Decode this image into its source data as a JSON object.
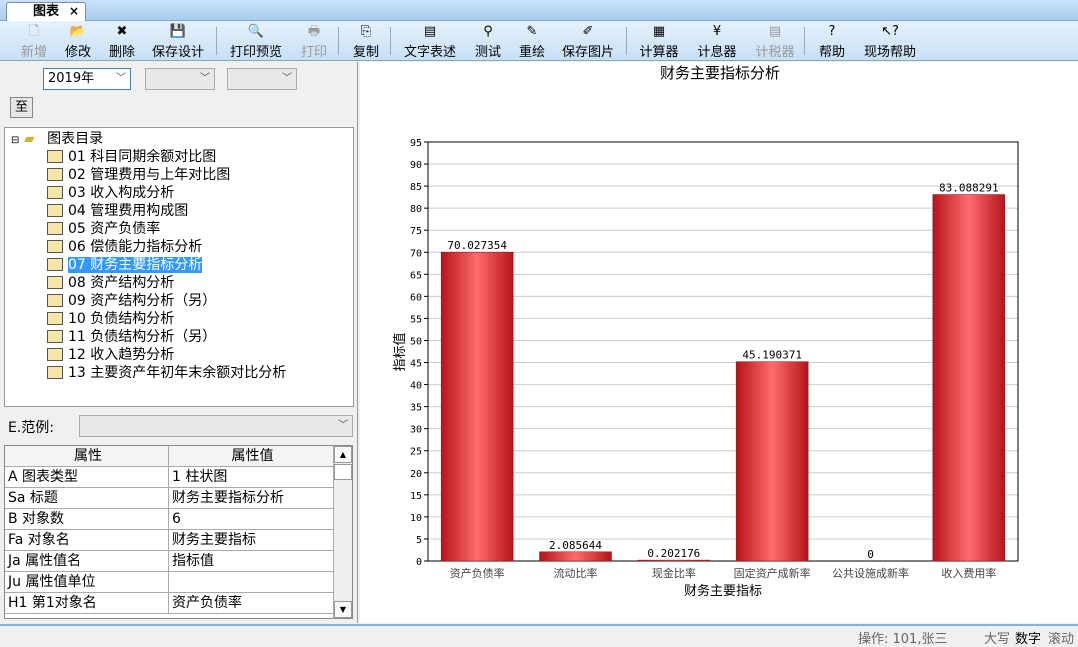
{
  "tab": {
    "label": "图表",
    "close": "×"
  },
  "toolbar": [
    {
      "label": "新增",
      "icon": "new-file-icon",
      "glyph": "🗋",
      "disabled": true
    },
    {
      "label": "修改",
      "icon": "open-folder-icon",
      "glyph": "📂",
      "disabled": false
    },
    {
      "label": "删除",
      "icon": "delete-icon",
      "glyph": "✖",
      "disabled": false
    },
    {
      "label": "保存设计",
      "icon": "save-icon",
      "glyph": "💾",
      "disabled": false
    },
    {
      "label": "打印预览",
      "icon": "print-preview-icon",
      "glyph": "🔍",
      "disabled": false
    },
    {
      "label": "打印",
      "icon": "print-icon",
      "glyph": "🖶",
      "disabled": true
    },
    {
      "label": "复制",
      "icon": "copy-icon",
      "glyph": "⎘",
      "disabled": false
    },
    {
      "label": "文字表述",
      "icon": "text-icon",
      "glyph": "▤",
      "disabled": false
    },
    {
      "label": "测试",
      "icon": "search-icon",
      "glyph": "⚲",
      "disabled": false
    },
    {
      "label": "重绘",
      "icon": "pencil-icon",
      "glyph": "✎",
      "disabled": false
    },
    {
      "label": "保存图片",
      "icon": "save-image-icon",
      "glyph": "✐",
      "disabled": false
    },
    {
      "label": "计算器",
      "icon": "calculator-icon",
      "glyph": "▦",
      "disabled": false
    },
    {
      "label": "计息器",
      "icon": "interest-icon",
      "glyph": "¥",
      "disabled": false
    },
    {
      "label": "计税器",
      "icon": "tax-icon",
      "glyph": "▤",
      "disabled": true
    },
    {
      "label": "帮助",
      "icon": "help-icon",
      "glyph": "?",
      "disabled": false
    },
    {
      "label": "现场帮助",
      "icon": "context-help-icon",
      "glyph": "↖?",
      "disabled": false
    }
  ],
  "filters": {
    "year": "2019年",
    "to_button": "至"
  },
  "tree": {
    "root": "图表目录",
    "items": [
      "01 科目同期余额对比图",
      "02 管理费用与上年对比图",
      "03 收入构成分析",
      "04 管理费用构成图",
      "05 资产负债率",
      "06 偿债能力指标分析",
      "07 财务主要指标分析",
      "08 资产结构分析",
      "09 资产结构分析（另）",
      "10 负债结构分析",
      "11 负债结构分析（另）",
      "12 收入趋势分析",
      "13 主要资产年初年末余额对比分析"
    ],
    "selected": 6
  },
  "example": {
    "label": "E.范例:"
  },
  "grid": {
    "headers": [
      "属性",
      "属性值"
    ],
    "rows": [
      [
        "A 图表类型",
        "1 柱状图"
      ],
      [
        "Sa 标题",
        "财务主要指标分析"
      ],
      [
        "B 对象数",
        "6"
      ],
      [
        "Fa 对象名",
        "财务主要指标"
      ],
      [
        "Ja 属性值名",
        "指标值"
      ],
      [
        "Ju 属性值单位",
        ""
      ],
      [
        "H1 第1对象名",
        "资产负债率"
      ]
    ]
  },
  "status": {
    "operator": "操作: 101,张三",
    "caps": "大写",
    "num": "数字",
    "scroll": "滚动"
  },
  "chart_data": {
    "type": "bar",
    "title": "财务主要指标分析",
    "xlabel": "财务主要指标",
    "ylabel": "指标值",
    "ylim": [
      0,
      95
    ],
    "yticks": [
      0,
      5,
      10,
      15,
      20,
      25,
      30,
      35,
      40,
      45,
      50,
      55,
      60,
      65,
      70,
      75,
      80,
      85,
      90,
      95
    ],
    "grid": true,
    "bar_color": "#e0262b",
    "categories": [
      "资产负债率",
      "流动比率",
      "现金比率",
      "固定资产成新率",
      "公共设施成新率",
      "收入费用率"
    ],
    "values": [
      70.027354,
      2.085644,
      0.202176,
      45.190371,
      0,
      83.088291
    ],
    "labels": [
      "70.027354",
      "2.085644",
      "0.202176",
      "45.190371",
      "0",
      "83.088291"
    ]
  }
}
